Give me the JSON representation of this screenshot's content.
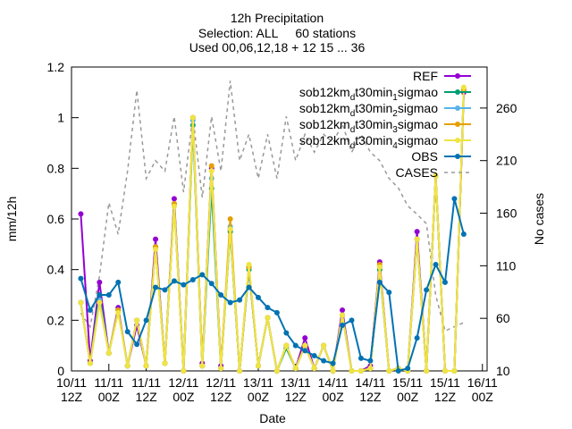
{
  "chart_data": {
    "type": "line",
    "title": "12h Precipitation",
    "subtitle": [
      "Selection: ALL     60 stations",
      "Used 00,06,12,18 + 12 15 ... 36"
    ],
    "x_label": "Date",
    "y_label": "mm/12h",
    "y2_label": "No cases",
    "x": [
      3,
      6,
      9,
      12,
      15,
      18,
      21,
      24,
      27,
      30,
      33,
      36,
      39,
      42,
      45,
      48,
      51,
      54,
      57,
      60,
      63,
      66,
      69,
      72,
      75,
      78,
      81,
      84,
      87,
      90,
      93,
      96,
      99,
      102,
      105,
      108,
      111,
      114,
      117,
      120,
      123,
      126
    ],
    "xlim": [
      0,
      133.5
    ],
    "xticks": [
      {
        "value": 0,
        "label": "10/11\n12Z"
      },
      {
        "value": 12,
        "label": "11/11\n00Z"
      },
      {
        "value": 24,
        "label": "11/11\n12Z"
      },
      {
        "value": 36,
        "label": "12/11\n00Z"
      },
      {
        "value": 48,
        "label": "12/11\n12Z"
      },
      {
        "value": 60,
        "label": "13/11\n00Z"
      },
      {
        "value": 72,
        "label": "13/11\n12Z"
      },
      {
        "value": 84,
        "label": "14/11\n00Z"
      },
      {
        "value": 96,
        "label": "14/11\n12Z"
      },
      {
        "value": 108,
        "label": "15/11\n00Z"
      },
      {
        "value": 120,
        "label": "15/11\n12Z"
      },
      {
        "value": 132,
        "label": "16/11\n00Z"
      }
    ],
    "ylim": [
      0,
      1.2
    ],
    "yticks": [
      0,
      0.2,
      0.4,
      0.6,
      0.8,
      1,
      1.2
    ],
    "y2lim": [
      10,
      299
    ],
    "y2ticks": [
      10,
      60,
      110,
      160,
      210,
      260
    ],
    "grid": false,
    "legend": "top-right",
    "series": [
      {
        "name": "REF",
        "color": "#9400d3",
        "values": [
          0.62,
          0.04,
          0.35,
          0.07,
          0.25,
          0.02,
          0.18,
          0.02,
          0.52,
          0.03,
          0.68,
          0.0,
          1.0,
          0.03,
          0.8,
          0.02,
          0.56,
          0.0,
          0.41,
          0.02,
          0.21,
          0.0,
          0.1,
          0.01,
          0.13,
          0.01,
          0.1,
          0.0,
          0.24,
          0.0,
          0.0,
          0.02,
          0.43,
          0.0,
          0.01,
          0.0,
          0.55,
          0.0,
          0.77,
          0.0,
          0.0,
          1.1
        ]
      },
      {
        "name": "sob12km_dt30min_1sigmao",
        "color": "#009e73",
        "values": [
          0.27,
          0.03,
          0.3,
          0.07,
          0.24,
          0.02,
          0.2,
          0.02,
          0.49,
          0.03,
          0.66,
          0.0,
          0.97,
          0.02,
          0.72,
          0.01,
          0.55,
          0.0,
          0.4,
          0.02,
          0.21,
          0.0,
          0.09,
          0.01,
          0.1,
          0.01,
          0.1,
          0.0,
          0.22,
          0.0,
          0.0,
          0.01,
          0.4,
          0.0,
          0.01,
          0.0,
          0.52,
          0.0,
          0.77,
          0.0,
          0.0,
          1.11
        ]
      },
      {
        "name": "sob12km_dt30min_2sigmao",
        "color": "#56b4e9",
        "values": [
          0.27,
          0.03,
          0.28,
          0.07,
          0.24,
          0.02,
          0.2,
          0.02,
          0.49,
          0.03,
          0.66,
          0.0,
          0.99,
          0.02,
          0.76,
          0.01,
          0.57,
          0.0,
          0.41,
          0.02,
          0.21,
          0.0,
          0.1,
          0.01,
          0.1,
          0.01,
          0.1,
          0.0,
          0.22,
          0.0,
          0.0,
          0.01,
          0.41,
          0.0,
          0.01,
          0.0,
          0.52,
          0.0,
          0.77,
          0.0,
          0.0,
          1.11
        ]
      },
      {
        "name": "sob12km_dt30min_3sigmao",
        "color": "#e69f00",
        "values": [
          0.27,
          0.03,
          0.27,
          0.07,
          0.24,
          0.02,
          0.2,
          0.02,
          0.49,
          0.03,
          0.66,
          0.0,
          1.0,
          0.02,
          0.81,
          0.01,
          0.6,
          0.0,
          0.41,
          0.02,
          0.21,
          0.0,
          0.1,
          0.01,
          0.1,
          0.01,
          0.1,
          0.0,
          0.22,
          0.0,
          0.0,
          0.01,
          0.42,
          0.0,
          0.01,
          0.0,
          0.52,
          0.0,
          0.77,
          0.0,
          0.0,
          1.11
        ]
      },
      {
        "name": "sob12km_dt30min_4sigmao",
        "color": "#f0e442",
        "values": [
          0.27,
          0.03,
          0.27,
          0.07,
          0.23,
          0.02,
          0.2,
          0.02,
          0.48,
          0.03,
          0.65,
          0.0,
          1.0,
          0.02,
          0.79,
          0.01,
          0.56,
          0.0,
          0.42,
          0.02,
          0.21,
          0.0,
          0.1,
          0.01,
          0.1,
          0.01,
          0.1,
          0.0,
          0.22,
          0.0,
          0.0,
          0.01,
          0.41,
          0.0,
          0.01,
          0.0,
          0.52,
          0.0,
          0.77,
          0.0,
          0.0,
          1.12
        ]
      },
      {
        "name": "OBS",
        "color": "#0072b2",
        "values": [
          0.365,
          0.24,
          0.3,
          0.3,
          0.35,
          0.155,
          0.105,
          0.2,
          0.33,
          0.32,
          0.355,
          0.34,
          0.36,
          0.38,
          0.345,
          0.3,
          0.27,
          0.28,
          0.33,
          0.29,
          0.25,
          0.23,
          0.15,
          0.1,
          0.08,
          0.06,
          0.04,
          0.03,
          0.18,
          0.2,
          0.05,
          0.04,
          0.35,
          0.31,
          0.0,
          0.01,
          0.13,
          0.32,
          0.42,
          0.35,
          0.68,
          0.54
        ]
      },
      {
        "name": "CASES",
        "color": "#999999",
        "axis": "y2",
        "dash": true,
        "values": [
          65,
          52,
          100,
          170,
          140,
          200,
          277,
          193,
          210,
          200,
          252,
          180,
          252,
          175,
          252,
          200,
          286,
          210,
          235,
          193,
          235,
          193,
          252,
          210,
          235,
          218,
          235,
          227,
          245,
          218,
          235,
          218,
          210,
          193,
          184,
          167,
          159,
          150,
          82,
          48,
          52,
          56
        ]
      }
    ]
  }
}
